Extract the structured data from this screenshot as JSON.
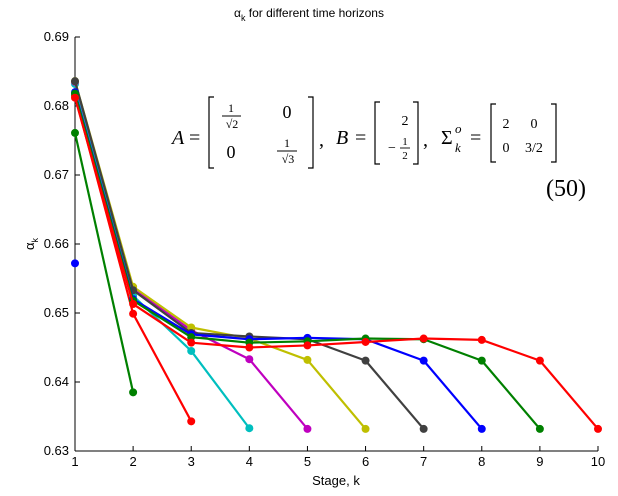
{
  "chart_data": {
    "type": "line",
    "title": "α_k for different time horizons",
    "title_main": "α",
    "title_sub": "k",
    "title_rest": " for different time horizons",
    "xlabel": "Stage, k",
    "ylabel_main": "α",
    "ylabel_sub": "k",
    "xlim": [
      1,
      10
    ],
    "ylim": [
      0.63,
      0.69
    ],
    "xticks": [
      1,
      2,
      3,
      4,
      5,
      6,
      7,
      8,
      9,
      10
    ],
    "xtick_labels": [
      "1",
      "2",
      "3",
      "4",
      "5",
      "6",
      "7",
      "8",
      "9",
      "10"
    ],
    "yticks": [
      0.63,
      0.64,
      0.65,
      0.66,
      0.67,
      0.68,
      0.69
    ],
    "ytick_labels": [
      "0.63",
      "0.64",
      "0.65",
      "0.66",
      "0.67",
      "0.68",
      "0.69"
    ],
    "grid": false,
    "series": [
      {
        "color": "#0000ff",
        "x": [
          1
        ],
        "y": [
          0.6572
        ]
      },
      {
        "color": "#008000",
        "x": [
          1,
          2
        ],
        "y": [
          0.6761,
          0.6385
        ]
      },
      {
        "color": "#ff0000",
        "x": [
          1,
          2,
          3
        ],
        "y": [
          0.6815,
          0.6499,
          0.6343
        ]
      },
      {
        "color": "#00bfbf",
        "x": [
          1,
          2,
          3,
          4
        ],
        "y": [
          0.6832,
          0.6525,
          0.6445,
          0.6333
        ]
      },
      {
        "color": "#bf00bf",
        "x": [
          1,
          2,
          3,
          4,
          5
        ],
        "y": [
          0.6835,
          0.6535,
          0.6475,
          0.6433,
          0.6332
        ]
      },
      {
        "color": "#bfbf00",
        "x": [
          1,
          2,
          3,
          4,
          5,
          6
        ],
        "y": [
          0.6836,
          0.6538,
          0.6479,
          0.6463,
          0.6432,
          0.6332
        ]
      },
      {
        "color": "#404040",
        "x": [
          1,
          2,
          3,
          4,
          5,
          6,
          7
        ],
        "y": [
          0.6836,
          0.6533,
          0.6471,
          0.6466,
          0.6462,
          0.6431,
          0.6332
        ]
      },
      {
        "color": "#0000ff",
        "x": [
          1,
          2,
          3,
          4,
          5,
          6,
          7,
          8
        ],
        "y": [
          0.682,
          0.652,
          0.6469,
          0.6462,
          0.6464,
          0.6462,
          0.6431,
          0.6332
        ]
      },
      {
        "color": "#008000",
        "x": [
          1,
          2,
          3,
          4,
          5,
          6,
          7,
          8,
          9
        ],
        "y": [
          0.6818,
          0.6518,
          0.6465,
          0.6457,
          0.6459,
          0.6463,
          0.6462,
          0.6431,
          0.6332
        ]
      },
      {
        "color": "#ff0000",
        "x": [
          1,
          2,
          3,
          4,
          5,
          6,
          7,
          8,
          9,
          10
        ],
        "y": [
          0.6812,
          0.6513,
          0.6457,
          0.645,
          0.6453,
          0.6458,
          0.6463,
          0.6461,
          0.6431,
          0.6332
        ]
      }
    ],
    "annotation": {
      "A_label": "A",
      "eq": "=",
      "A_r1c1_num": "1",
      "A_r1c1_den": "√2",
      "A_r1c2": "0",
      "A_r2c1": "0",
      "A_r2c2_num": "1",
      "A_r2c2_den": "√3",
      "comma1": ",",
      "B_label": "B",
      "B_r1": "2",
      "B_r2_sign": "−",
      "B_r2_num": "1",
      "B_r2_den": "2",
      "comma2": ",",
      "S_label": "Σ",
      "S_sup": "o",
      "S_sub": "k",
      "S_r1c1": "2",
      "S_r1c2": "0",
      "S_r2c1": "0",
      "S_r2c2": "3/2",
      "eq_number": "(50)"
    }
  }
}
